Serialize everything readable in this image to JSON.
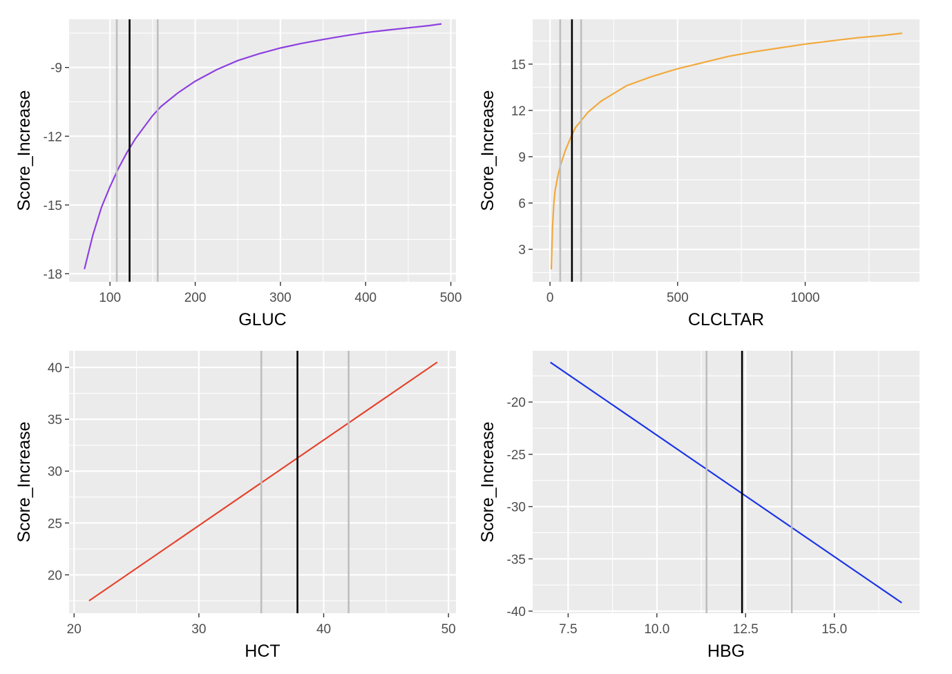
{
  "chart_data": [
    {
      "type": "line",
      "xlabel": "GLUC",
      "ylabel": "Score_Increase",
      "xlim": [
        52,
        506
      ],
      "ylim": [
        -18.35,
        -6.9
      ],
      "xticks": [
        100,
        200,
        300,
        400,
        500
      ],
      "xtick_labels": [
        "100",
        "200",
        "300",
        "400",
        "500"
      ],
      "yticks": [
        -18,
        -15,
        -12,
        -9
      ],
      "ytick_labels": [
        "-18",
        "-15",
        "-12",
        "-9"
      ],
      "grid": true,
      "line_color": "#8e3fe0",
      "x": [
        70,
        80,
        90,
        100,
        110,
        120,
        130,
        140,
        150,
        160,
        180,
        200,
        225,
        250,
        275,
        300,
        325,
        350,
        375,
        400,
        425,
        450,
        475,
        489
      ],
      "y": [
        -17.8,
        -16.3,
        -15.1,
        -14.2,
        -13.4,
        -12.7,
        -12.1,
        -11.6,
        -11.1,
        -10.7,
        -10.1,
        -9.6,
        -9.1,
        -8.7,
        -8.4,
        -8.15,
        -7.95,
        -7.78,
        -7.62,
        -7.48,
        -7.37,
        -7.27,
        -7.17,
        -7.1
      ],
      "reference_lines": [
        {
          "x": 108,
          "color": "#bebebe"
        },
        {
          "x": 123,
          "color": "#000000"
        },
        {
          "x": 156,
          "color": "#bebebe"
        }
      ]
    },
    {
      "type": "line",
      "xlabel": "CLCLTAR",
      "ylabel": "Score_Increase",
      "xlim": [
        -68,
        1448
      ],
      "ylim": [
        0.9,
        17.9
      ],
      "xticks": [
        0,
        500,
        1000
      ],
      "xtick_labels": [
        "0",
        "500",
        "1000"
      ],
      "yticks": [
        3,
        6,
        9,
        12,
        15
      ],
      "ytick_labels": [
        "3",
        "6",
        "9",
        "12",
        "15"
      ],
      "grid": true,
      "line_color": "#f2a93b",
      "x": [
        5,
        10,
        15,
        20,
        30,
        40,
        50,
        60,
        80,
        100,
        125,
        150,
        200,
        250,
        300,
        400,
        500,
        600,
        700,
        800,
        900,
        1000,
        1100,
        1200,
        1300,
        1380
      ],
      "y": [
        1.7,
        4.5,
        6.0,
        6.8,
        7.7,
        8.4,
        8.9,
        9.4,
        10.2,
        10.9,
        11.4,
        11.9,
        12.6,
        13.1,
        13.6,
        14.2,
        14.7,
        15.1,
        15.5,
        15.8,
        16.05,
        16.3,
        16.5,
        16.7,
        16.85,
        17.0
      ],
      "reference_lines": [
        {
          "x": 40,
          "color": "#bebebe"
        },
        {
          "x": 86,
          "color": "#000000"
        },
        {
          "x": 122,
          "color": "#bebebe"
        }
      ]
    },
    {
      "type": "line",
      "xlabel": "HCT",
      "ylabel": "Score_Increase",
      "xlim": [
        19.6,
        50.6
      ],
      "ylim": [
        16.3,
        41.6
      ],
      "xticks": [
        20,
        30,
        40,
        50
      ],
      "xtick_labels": [
        "20",
        "30",
        "40",
        "50"
      ],
      "yticks": [
        20,
        25,
        30,
        35,
        40
      ],
      "ytick_labels": [
        "20",
        "25",
        "30",
        "35",
        "40"
      ],
      "grid": true,
      "line_color": "#e5432d",
      "x": [
        21.2,
        49.1
      ],
      "y": [
        17.5,
        40.5
      ],
      "reference_lines": [
        {
          "x": 35.0,
          "color": "#bebebe"
        },
        {
          "x": 37.9,
          "color": "#000000"
        },
        {
          "x": 42.0,
          "color": "#bebebe"
        }
      ]
    },
    {
      "type": "line",
      "xlabel": "HBG",
      "ylabel": "Score_Increase",
      "xlim": [
        6.5,
        17.4
      ],
      "ylim": [
        -40.2,
        -15.1
      ],
      "xticks": [
        7.5,
        10.0,
        12.5,
        15.0
      ],
      "xtick_labels": [
        "7.5",
        "10.0",
        "12.5",
        "15.0"
      ],
      "yticks": [
        -40,
        -35,
        -30,
        -25,
        -20
      ],
      "ytick_labels": [
        "-40",
        "-35",
        "-30",
        "-25",
        "-20"
      ],
      "grid": true,
      "line_color": "#1a34e8",
      "x": [
        7.0,
        16.9
      ],
      "y": [
        -16.2,
        -39.2
      ],
      "reference_lines": [
        {
          "x": 11.4,
          "color": "#bebebe"
        },
        {
          "x": 12.4,
          "color": "#000000"
        },
        {
          "x": 13.8,
          "color": "#bebebe"
        }
      ]
    }
  ]
}
